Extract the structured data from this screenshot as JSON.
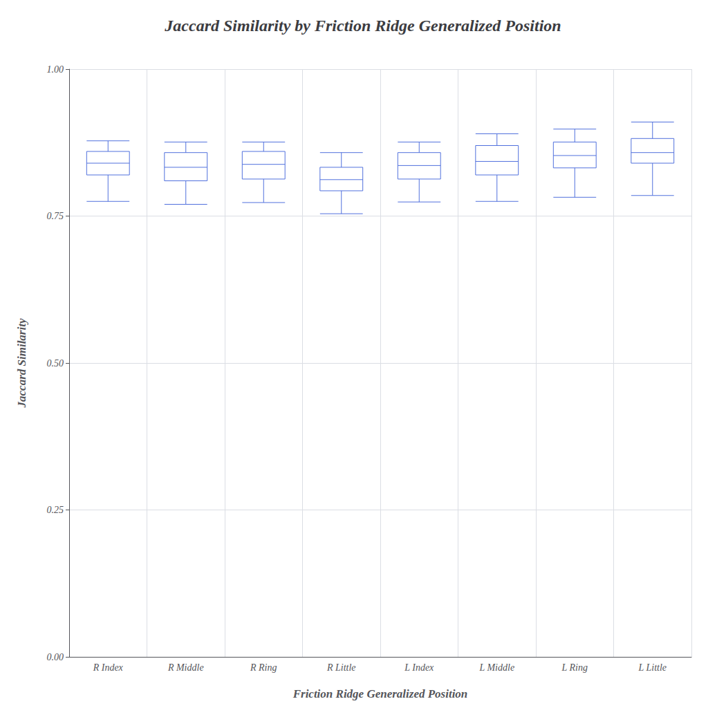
{
  "chart_data": {
    "type": "box",
    "title": "Jaccard Similarity by Friction Ridge Generalized Position",
    "xlabel": "Friction Ridge Generalized Position",
    "ylabel": "Jaccard Similarity",
    "categories": [
      "R Index",
      "R Middle",
      "R Ring",
      "R Little",
      "L Index",
      "L Middle",
      "L Ring",
      "L Little"
    ],
    "values": [
      {
        "low": 0.775,
        "q1": 0.82,
        "median": 0.84,
        "q3": 0.86,
        "high": 0.878
      },
      {
        "low": 0.77,
        "q1": 0.81,
        "median": 0.833,
        "q3": 0.858,
        "high": 0.876
      },
      {
        "low": 0.773,
        "q1": 0.813,
        "median": 0.838,
        "q3": 0.86,
        "high": 0.876
      },
      {
        "low": 0.754,
        "q1": 0.793,
        "median": 0.812,
        "q3": 0.833,
        "high": 0.858
      },
      {
        "low": 0.774,
        "q1": 0.813,
        "median": 0.836,
        "q3": 0.858,
        "high": 0.876
      },
      {
        "low": 0.775,
        "q1": 0.82,
        "median": 0.843,
        "q3": 0.87,
        "high": 0.89
      },
      {
        "low": 0.782,
        "q1": 0.832,
        "median": 0.853,
        "q3": 0.876,
        "high": 0.898
      },
      {
        "low": 0.785,
        "q1": 0.84,
        "median": 0.858,
        "q3": 0.882,
        "high": 0.91
      }
    ],
    "ylim": [
      0.0,
      1.0
    ],
    "yticks": [
      {
        "value": 0.0,
        "label": "0.00"
      },
      0.25,
      {
        "value": 0.5,
        "label": "0.50"
      },
      0.75,
      {
        "value": 1.0,
        "label": "1.00"
      }
    ],
    "grid": true
  }
}
